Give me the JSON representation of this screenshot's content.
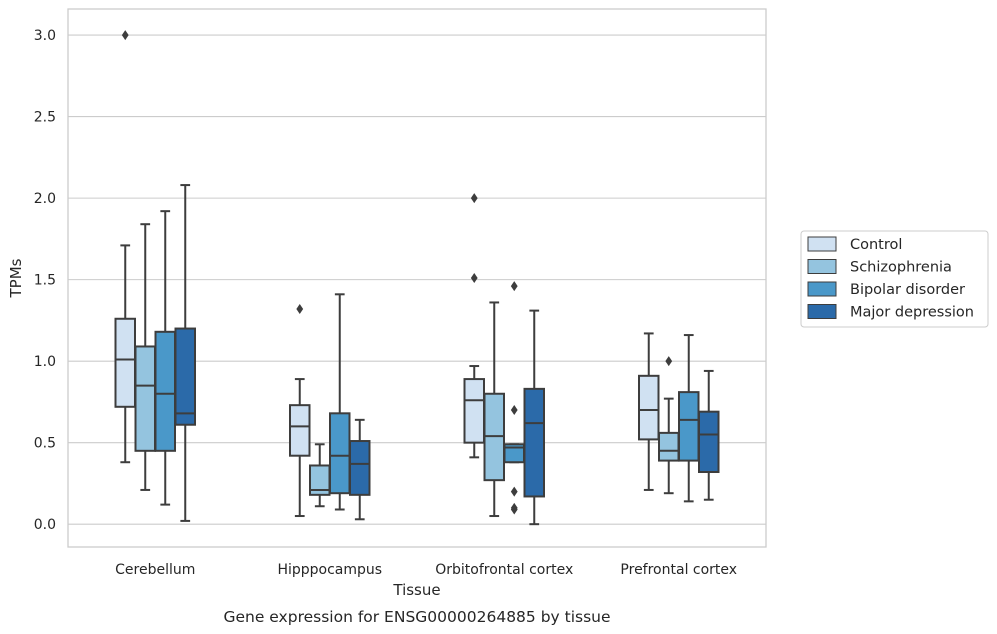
{
  "chart_data": {
    "type": "box",
    "xlabel": "Tissue",
    "ylabel": "TPMs",
    "caption": "Gene expression for ENSG00000264885 by tissue",
    "ylim": [
      -0.14,
      3.16
    ],
    "yticks": [
      0.0,
      0.5,
      1.0,
      1.5,
      2.0,
      2.5,
      3.0
    ],
    "ytick_labels": [
      "0.0",
      "0.5",
      "1.0",
      "1.5",
      "2.0",
      "2.5",
      "3.0"
    ],
    "grid": "horizontal",
    "legend_position": "right",
    "categories": [
      "Cerebellum",
      "Hipppocampus",
      "Orbitofrontal cortex",
      "Prefrontal cortex"
    ],
    "series": [
      {
        "name": "Control",
        "color": "#d0e1f2",
        "boxes": [
          {
            "whislo": 0.38,
            "q1": 0.72,
            "med": 1.01,
            "q3": 1.26,
            "whishi": 1.71,
            "fliers": [
              3.0
            ]
          },
          {
            "whislo": 0.05,
            "q1": 0.42,
            "med": 0.6,
            "q3": 0.73,
            "whishi": 0.89,
            "fliers": [
              1.32
            ]
          },
          {
            "whislo": 0.41,
            "q1": 0.5,
            "med": 0.76,
            "q3": 0.89,
            "whishi": 0.97,
            "fliers": [
              1.51,
              2.0
            ]
          },
          {
            "whislo": 0.21,
            "q1": 0.52,
            "med": 0.7,
            "q3": 0.91,
            "whishi": 1.17,
            "fliers": []
          }
        ]
      },
      {
        "name": "Schizophrenia",
        "color": "#94c4df",
        "boxes": [
          {
            "whislo": 0.21,
            "q1": 0.45,
            "med": 0.85,
            "q3": 1.09,
            "whishi": 1.84,
            "fliers": []
          },
          {
            "whislo": 0.11,
            "q1": 0.18,
            "med": 0.21,
            "q3": 0.36,
            "whishi": 0.49,
            "fliers": []
          },
          {
            "whislo": 0.05,
            "q1": 0.27,
            "med": 0.54,
            "q3": 0.8,
            "whishi": 1.36,
            "fliers": []
          },
          {
            "whislo": 0.19,
            "q1": 0.39,
            "med": 0.45,
            "q3": 0.56,
            "whishi": 0.77,
            "fliers": [
              1.0
            ]
          }
        ]
      },
      {
        "name": "Bipolar disorder",
        "color": "#4a98c9",
        "boxes": [
          {
            "whislo": 0.12,
            "q1": 0.45,
            "med": 0.8,
            "q3": 1.18,
            "whishi": 1.92,
            "fliers": []
          },
          {
            "whislo": 0.09,
            "q1": 0.19,
            "med": 0.42,
            "q3": 0.68,
            "whishi": 1.41,
            "fliers": []
          },
          {
            "whislo": 0.38,
            "q1": 0.38,
            "med": 0.47,
            "q3": 0.49,
            "whishi": 0.49,
            "fliers": [
              1.46,
              0.7,
              0.2,
              0.1,
              0.09
            ]
          },
          {
            "whislo": 0.14,
            "q1": 0.39,
            "med": 0.64,
            "q3": 0.81,
            "whishi": 1.16,
            "fliers": []
          }
        ]
      },
      {
        "name": "Major depression",
        "color": "#2b6aa9",
        "boxes": [
          {
            "whislo": 0.02,
            "q1": 0.61,
            "med": 0.68,
            "q3": 1.2,
            "whishi": 2.08,
            "fliers": []
          },
          {
            "whislo": 0.03,
            "q1": 0.18,
            "med": 0.37,
            "q3": 0.51,
            "whishi": 0.64,
            "fliers": []
          },
          {
            "whislo": 0.0,
            "q1": 0.17,
            "med": 0.62,
            "q3": 0.83,
            "whishi": 1.31,
            "fliers": []
          },
          {
            "whislo": 0.15,
            "q1": 0.32,
            "med": 0.55,
            "q3": 0.69,
            "whishi": 0.94,
            "fliers": []
          }
        ]
      }
    ]
  }
}
